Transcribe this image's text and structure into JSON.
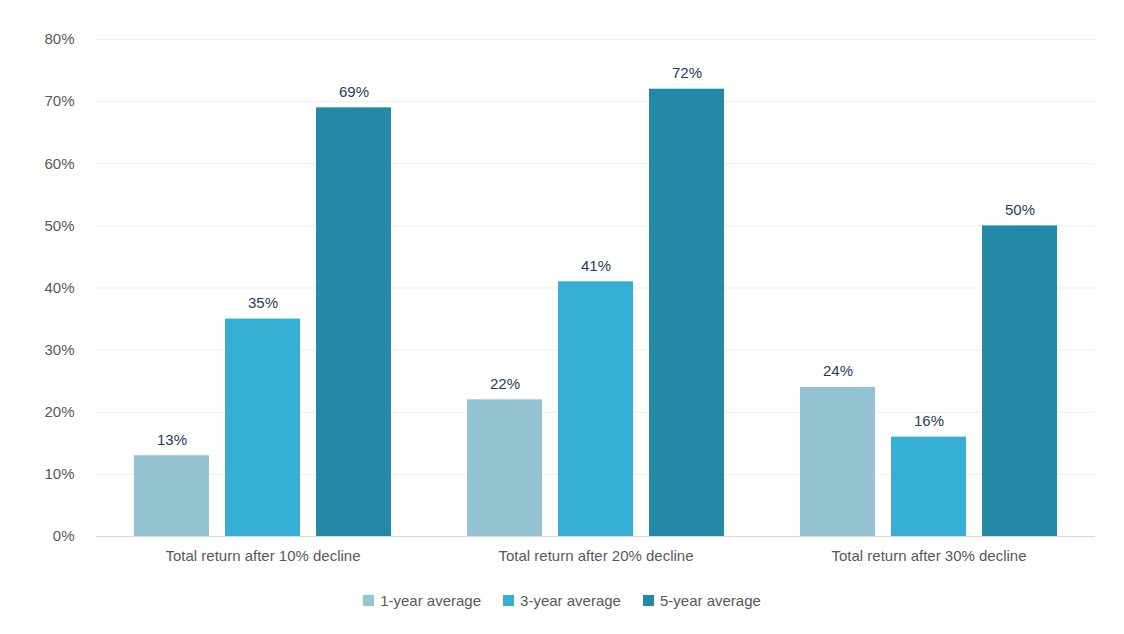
{
  "chart_data": {
    "type": "bar",
    "categories": [
      "Total return after 10% decline",
      "Total return after 20% decline",
      "Total return after 30% decline"
    ],
    "series": [
      {
        "name": "1-year average",
        "color": "#94c3d2",
        "values": [
          13,
          22,
          24
        ],
        "value_labels": [
          "13%",
          "22%",
          "24%"
        ]
      },
      {
        "name": "3-year average",
        "color": "#35afd4",
        "values": [
          35,
          41,
          16
        ],
        "value_labels": [
          "35%",
          "41%",
          "16%"
        ]
      },
      {
        "name": "5-year average",
        "color": "#2489a6",
        "values": [
          69,
          72,
          50
        ],
        "value_labels": [
          "69%",
          "72%",
          "50%"
        ]
      }
    ],
    "ylim": [
      0,
      80
    ],
    "yticks": [
      {
        "value": 0,
        "label": "0%"
      },
      {
        "value": 10,
        "label": "10%"
      },
      {
        "value": 20,
        "label": "20%"
      },
      {
        "value": 30,
        "label": "30%"
      },
      {
        "value": 40,
        "label": "40%"
      },
      {
        "value": 50,
        "label": "50%"
      },
      {
        "value": 60,
        "label": "60%"
      },
      {
        "value": 70,
        "label": "70%"
      },
      {
        "value": 80,
        "label": "80%"
      }
    ],
    "grid": true,
    "data_labels": true,
    "legend": "bottom"
  }
}
